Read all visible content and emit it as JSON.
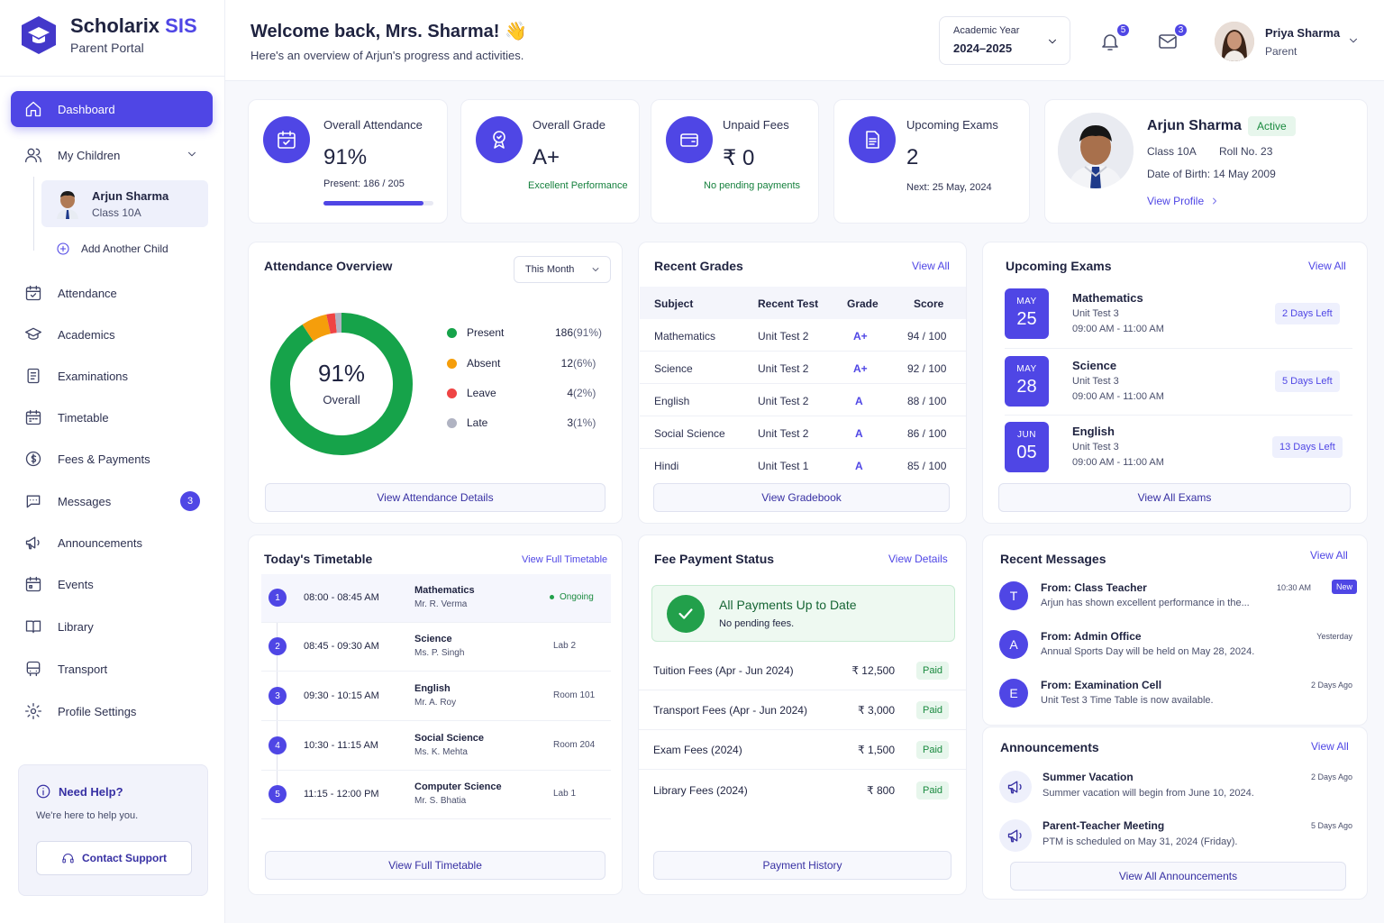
{
  "brand": {
    "name_main": "Scholarix",
    "name_accent": "SIS",
    "subtitle": "Parent Portal"
  },
  "sidebar": {
    "items": [
      {
        "label": "Dashboard",
        "icon": "home-icon"
      },
      {
        "label": "My Children",
        "icon": "users-icon"
      },
      {
        "label": "Attendance",
        "icon": "calendar-check-icon"
      },
      {
        "label": "Academics",
        "icon": "graduation-cap-icon"
      },
      {
        "label": "Examinations",
        "icon": "clipboard-icon"
      },
      {
        "label": "Timetable",
        "icon": "calendar-icon"
      },
      {
        "label": "Fees & Payments",
        "icon": "dollar-icon"
      },
      {
        "label": "Messages",
        "icon": "chat-icon",
        "badge": "3"
      },
      {
        "label": "Announcements",
        "icon": "megaphone-icon"
      },
      {
        "label": "Events",
        "icon": "calendar-event-icon"
      },
      {
        "label": "Library",
        "icon": "book-icon"
      },
      {
        "label": "Transport",
        "icon": "bus-icon"
      },
      {
        "label": "Profile Settings",
        "icon": "gear-icon"
      }
    ],
    "child": {
      "name": "Arjun Sharma",
      "class": "Class 10A"
    },
    "add_child": "Add Another Child",
    "help": {
      "title": "Need Help?",
      "desc": "We're here to help you.",
      "button": "Contact Support"
    }
  },
  "header": {
    "welcome": "Welcome back, Mrs. Sharma! 👋",
    "subtitle": "Here's an overview of Arjun's progress and activities.",
    "academic_year_label": "Academic Year",
    "academic_year": "2024–2025",
    "notifications_count": "5",
    "mail_count": "3",
    "user_name": "Priya Sharma",
    "user_role": "Parent"
  },
  "stats": {
    "attendance": {
      "label": "Overall Attendance",
      "value": "91%",
      "sub": "Present: 186 / 205",
      "progress": 0.91
    },
    "grade": {
      "label": "Overall Grade",
      "value": "A+",
      "sub": "Excellent Performance"
    },
    "fees": {
      "label": "Unpaid Fees",
      "value": "₹ 0",
      "sub": "No pending payments"
    },
    "exams": {
      "label": "Upcoming Exams",
      "value": "2",
      "sub": "Next: 25 May, 2024"
    }
  },
  "profile": {
    "name": "Arjun Sharma",
    "status": "Active",
    "class": "Class 10A",
    "roll": "Roll No. 23",
    "dob": "Date of Birth: 14 May 2009",
    "link": "View Profile"
  },
  "attendance_overview": {
    "title": "Attendance Overview",
    "filter": "This Month",
    "center_value": "91%",
    "center_label": "Overall",
    "button": "View Attendance Details",
    "legend": [
      {
        "label": "Present",
        "count": "186",
        "pct": "(91%)",
        "color": "#16a34a",
        "value": 186
      },
      {
        "label": "Absent",
        "count": "12",
        "pct": "(6%)",
        "color": "#f59e0b",
        "value": 12
      },
      {
        "label": "Leave",
        "count": "4",
        "pct": "(2%)",
        "color": "#ef4444",
        "value": 4
      },
      {
        "label": "Late",
        "count": "3",
        "pct": "(1%)",
        "color": "#b0b3c2",
        "value": 3
      }
    ]
  },
  "recent_grades": {
    "title": "Recent Grades",
    "view_all": "View All",
    "headers": [
      "Subject",
      "Recent Test",
      "Grade",
      "Score"
    ],
    "rows": [
      [
        "Mathematics",
        "Unit Test 2",
        "A+",
        "94 / 100"
      ],
      [
        "Science",
        "Unit Test 2",
        "A+",
        "92 / 100"
      ],
      [
        "English",
        "Unit Test 2",
        "A",
        "88 / 100"
      ],
      [
        "Social Science",
        "Unit Test 2",
        "A",
        "86 / 100"
      ],
      [
        "Hindi",
        "Unit Test 1",
        "A",
        "85 / 100"
      ]
    ],
    "button": "View Gradebook"
  },
  "upcoming_exams": {
    "title": "Upcoming Exams",
    "view_all": "View All",
    "items": [
      {
        "month": "MAY",
        "day": "25",
        "subject": "Mathematics",
        "test": "Unit Test 3",
        "time": "09:00 AM - 11:00 AM",
        "days_left": "2 Days Left"
      },
      {
        "month": "MAY",
        "day": "28",
        "subject": "Science",
        "test": "Unit Test 3",
        "time": "09:00 AM - 11:00 AM",
        "days_left": "5 Days Left"
      },
      {
        "month": "JUN",
        "day": "05",
        "subject": "English",
        "test": "Unit Test 3",
        "time": "09:00 AM - 11:00 AM",
        "days_left": "13 Days Left"
      }
    ],
    "button": "View All Exams"
  },
  "timetable": {
    "title": "Today's Timetable",
    "view_all": "View Full Timetable",
    "rows": [
      {
        "num": "1",
        "time": "08:00 - 08:45 AM",
        "subject": "Mathematics",
        "teacher": "Mr. R. Verma",
        "room": "",
        "status": "Ongoing"
      },
      {
        "num": "2",
        "time": "08:45 - 09:30 AM",
        "subject": "Science",
        "teacher": "Ms. P. Singh",
        "room": "Lab 2",
        "status": ""
      },
      {
        "num": "3",
        "time": "09:30 - 10:15 AM",
        "subject": "English",
        "teacher": "Mr. A. Roy",
        "room": "Room 101",
        "status": ""
      },
      {
        "num": "4",
        "time": "10:30 - 11:15 AM",
        "subject": "Social Science",
        "teacher": "Ms. K. Mehta",
        "room": "Room 204",
        "status": ""
      },
      {
        "num": "5",
        "time": "11:15 - 12:00 PM",
        "subject": "Computer Science",
        "teacher": "Mr. S. Bhatia",
        "room": "Lab 1",
        "status": ""
      }
    ],
    "button": "View Full Timetable"
  },
  "fees": {
    "title": "Fee Payment Status",
    "view_details": "View Details",
    "status_title": "All Payments Up to Date",
    "status_desc": "No pending fees.",
    "rows": [
      {
        "name": "Tuition Fees (Apr - Jun 2024)",
        "amount": "₹ 12,500",
        "status": "Paid"
      },
      {
        "name": "Transport Fees (Apr - Jun 2024)",
        "amount": "₹ 3,000",
        "status": "Paid"
      },
      {
        "name": "Exam Fees (2024)",
        "amount": "₹ 1,500",
        "status": "Paid"
      },
      {
        "name": "Library Fees (2024)",
        "amount": "₹ 800",
        "status": "Paid"
      }
    ],
    "button": "Payment History"
  },
  "messages": {
    "title": "Recent Messages",
    "view_all": "View All",
    "items": [
      {
        "avatar": "T",
        "from": "From: Class Teacher",
        "body": "Arjun has shown excellent performance in the...",
        "time": "10:30 AM",
        "new": "New"
      },
      {
        "avatar": "A",
        "from": "From: Admin Office",
        "body": "Annual Sports Day will be held on May 28, 2024.",
        "time": "Yesterday",
        "new": ""
      },
      {
        "avatar": "E",
        "from": "From: Examination Cell",
        "body": "Unit Test 3 Time Table is now available.",
        "time": "2 Days Ago",
        "new": ""
      }
    ]
  },
  "announcements": {
    "title": "Announcements",
    "view_all": "View All",
    "items": [
      {
        "title": "Summer Vacation",
        "desc": "Summer vacation will begin from June 10, 2024.",
        "time": "2 Days Ago"
      },
      {
        "title": "Parent-Teacher Meeting",
        "desc": "PTM is scheduled on May 31, 2024 (Friday).",
        "time": "5 Days Ago"
      }
    ],
    "button": "View All Announcements"
  },
  "colors": {
    "accent": "#4f46e5",
    "success": "#16a34a",
    "warning": "#f59e0b",
    "danger": "#ef4444"
  }
}
